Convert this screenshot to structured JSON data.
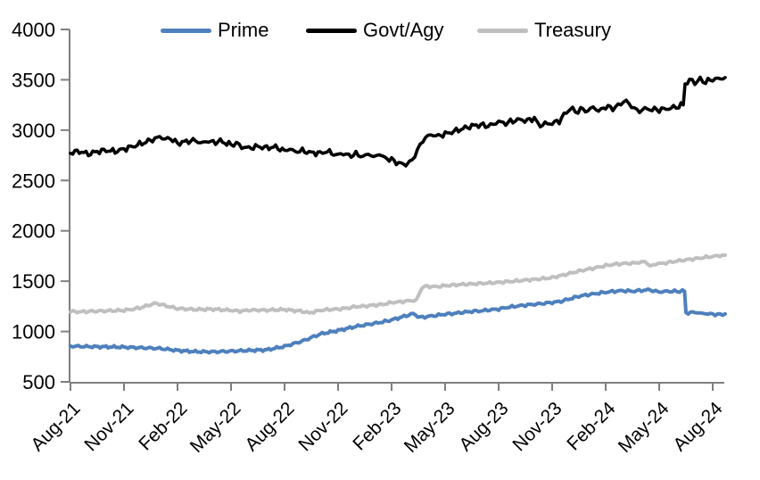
{
  "chart_data": {
    "type": "line",
    "title": "",
    "xlabel": "",
    "ylabel": "",
    "background_color": "#ffffff",
    "axis_color": "#7f7f7f",
    "text_color": "#000000",
    "grid": false,
    "y_axis": {
      "min": 500,
      "max": 4000,
      "tick_interval": 500,
      "ticks": [
        500,
        1000,
        1500,
        2000,
        2500,
        3000,
        3500,
        4000
      ]
    },
    "x_axis": {
      "unit": "months since Aug-21",
      "tick_interval_months": 3,
      "tick_labels": [
        "Aug-21",
        "Nov-21",
        "Feb-22",
        "May-22",
        "Aug-22",
        "Nov-22",
        "Feb-23",
        "May-23",
        "Aug-23",
        "Nov-23",
        "Feb-24",
        "May-24",
        "Aug-24"
      ],
      "label_rotation_deg": -45
    },
    "legend": {
      "position": "top",
      "entries": [
        {
          "name": "Prime",
          "color": "#4E80BD"
        },
        {
          "name": "Govt/Agy",
          "color": "#000000"
        },
        {
          "name": "Treasury",
          "color": "#BFBFBF"
        }
      ]
    },
    "series": [
      {
        "name": "Prime",
        "color": "#4E80BD",
        "points": [
          [
            0,
            855
          ],
          [
            1,
            850
          ],
          [
            2,
            848
          ],
          [
            3,
            845
          ],
          [
            4,
            838
          ],
          [
            5,
            832
          ],
          [
            6,
            812
          ],
          [
            7,
            800
          ],
          [
            8,
            798
          ],
          [
            9,
            805
          ],
          [
            10,
            812
          ],
          [
            11,
            818
          ],
          [
            12,
            852
          ],
          [
            13,
            905
          ],
          [
            14,
            975
          ],
          [
            15,
            1010
          ],
          [
            16,
            1050
          ],
          [
            17,
            1080
          ],
          [
            17.5,
            1095
          ],
          [
            18,
            1115
          ],
          [
            18.7,
            1150
          ],
          [
            19.2,
            1178
          ],
          [
            19.6,
            1140
          ],
          [
            20,
            1148
          ],
          [
            20.5,
            1160
          ],
          [
            21,
            1172
          ],
          [
            21.5,
            1180
          ],
          [
            22,
            1190
          ],
          [
            22.5,
            1200
          ],
          [
            23,
            1205
          ],
          [
            23.5,
            1215
          ],
          [
            24,
            1222
          ],
          [
            24.5,
            1240
          ],
          [
            25,
            1252
          ],
          [
            25.5,
            1262
          ],
          [
            26,
            1270
          ],
          [
            27,
            1288
          ],
          [
            27.5,
            1300
          ],
          [
            28,
            1325
          ],
          [
            28.5,
            1350
          ],
          [
            29,
            1365
          ],
          [
            29.5,
            1378
          ],
          [
            30,
            1390
          ],
          [
            30.5,
            1400
          ],
          [
            31,
            1405
          ],
          [
            31.5,
            1400
          ],
          [
            32,
            1408
          ],
          [
            32.5,
            1415
          ],
          [
            32.8,
            1398
          ],
          [
            33,
            1390
          ],
          [
            33.3,
            1400
          ],
          [
            33.6,
            1398
          ],
          [
            34,
            1400
          ],
          [
            34.3,
            1402
          ],
          [
            34.42,
            1400
          ],
          [
            34.5,
            1185
          ],
          [
            35,
            1190
          ],
          [
            35.3,
            1182
          ],
          [
            35.6,
            1178
          ],
          [
            36,
            1172
          ],
          [
            36.4,
            1168
          ],
          [
            36.7,
            1175
          ]
        ]
      },
      {
        "name": "Govt/Agy",
        "color": "#000000",
        "points": [
          [
            0,
            2775
          ],
          [
            0.5,
            2790
          ],
          [
            1,
            2762
          ],
          [
            1.5,
            2788
          ],
          [
            2,
            2800
          ],
          [
            2.5,
            2788
          ],
          [
            3,
            2812
          ],
          [
            3.5,
            2838
          ],
          [
            4,
            2868
          ],
          [
            4.6,
            2905
          ],
          [
            5,
            2932
          ],
          [
            5.3,
            2912
          ],
          [
            5.6,
            2918
          ],
          [
            6,
            2868
          ],
          [
            6.5,
            2888
          ],
          [
            7,
            2898
          ],
          [
            7.3,
            2868
          ],
          [
            7.6,
            2892
          ],
          [
            8,
            2878
          ],
          [
            8.4,
            2890
          ],
          [
            9,
            2855
          ],
          [
            9.3,
            2868
          ],
          [
            9.6,
            2835
          ],
          [
            10,
            2822
          ],
          [
            10.5,
            2838
          ],
          [
            11,
            2825
          ],
          [
            11.5,
            2832
          ],
          [
            12,
            2795
          ],
          [
            12.3,
            2812
          ],
          [
            12.6,
            2788
          ],
          [
            13,
            2795
          ],
          [
            13.5,
            2775
          ],
          [
            14,
            2772
          ],
          [
            14.4,
            2788
          ],
          [
            15,
            2748
          ],
          [
            15.3,
            2772
          ],
          [
            15.6,
            2745
          ],
          [
            16,
            2762
          ],
          [
            16.4,
            2738
          ],
          [
            16.7,
            2765
          ],
          [
            17,
            2732
          ],
          [
            17.3,
            2762
          ],
          [
            17.6,
            2728
          ],
          [
            18,
            2705
          ],
          [
            18.4,
            2672
          ],
          [
            18.8,
            2655
          ],
          [
            19,
            2678
          ],
          [
            19.3,
            2742
          ],
          [
            19.6,
            2858
          ],
          [
            19.9,
            2925
          ],
          [
            20.2,
            2958
          ],
          [
            20.5,
            2938
          ],
          [
            21,
            2962
          ],
          [
            21.5,
            2988
          ],
          [
            22,
            3015
          ],
          [
            22.5,
            3042
          ],
          [
            23,
            3052
          ],
          [
            23.4,
            3040
          ],
          [
            23.7,
            3060
          ],
          [
            24,
            3082
          ],
          [
            24.4,
            3068
          ],
          [
            24.8,
            3092
          ],
          [
            25.2,
            3105
          ],
          [
            25.6,
            3092
          ],
          [
            26,
            3122
          ],
          [
            26.2,
            3048
          ],
          [
            26.6,
            3062
          ],
          [
            27,
            3068
          ],
          [
            27.4,
            3092
          ],
          [
            27.8,
            3178
          ],
          [
            28,
            3218
          ],
          [
            28.3,
            3182
          ],
          [
            28.6,
            3205
          ],
          [
            29,
            3192
          ],
          [
            29.3,
            3232
          ],
          [
            29.6,
            3185
          ],
          [
            30,
            3235
          ],
          [
            30.4,
            3215
          ],
          [
            30.7,
            3242
          ],
          [
            31,
            3288
          ],
          [
            31.3,
            3268
          ],
          [
            31.6,
            3212
          ],
          [
            31.9,
            3188
          ],
          [
            32.2,
            3212
          ],
          [
            32.6,
            3205
          ],
          [
            33,
            3202
          ],
          [
            33.4,
            3212
          ],
          [
            33.8,
            3222
          ],
          [
            34.1,
            3238
          ],
          [
            34.35,
            3252
          ],
          [
            34.45,
            3462
          ],
          [
            34.7,
            3492
          ],
          [
            35,
            3478
          ],
          [
            35.3,
            3498
          ],
          [
            35.6,
            3482
          ],
          [
            36,
            3502
          ],
          [
            36.3,
            3508
          ],
          [
            36.7,
            3522
          ]
        ]
      },
      {
        "name": "Treasury",
        "color": "#BFBFBF",
        "points": [
          [
            0,
            1200
          ],
          [
            0.5,
            1195
          ],
          [
            1,
            1200
          ],
          [
            2,
            1205
          ],
          [
            3,
            1210
          ],
          [
            3.5,
            1222
          ],
          [
            4,
            1240
          ],
          [
            4.7,
            1278
          ],
          [
            5,
            1272
          ],
          [
            5.5,
            1248
          ],
          [
            6,
            1228
          ],
          [
            7,
            1218
          ],
          [
            8,
            1222
          ],
          [
            9,
            1210
          ],
          [
            9.5,
            1202
          ],
          [
            10,
            1212
          ],
          [
            11,
            1212
          ],
          [
            12,
            1218
          ],
          [
            13,
            1200
          ],
          [
            13.4,
            1185
          ],
          [
            14,
            1210
          ],
          [
            14.5,
            1218
          ],
          [
            15,
            1222
          ],
          [
            15.5,
            1232
          ],
          [
            16,
            1248
          ],
          [
            16.5,
            1252
          ],
          [
            17,
            1262
          ],
          [
            17.5,
            1268
          ],
          [
            18,
            1288
          ],
          [
            18.5,
            1295
          ],
          [
            19,
            1305
          ],
          [
            19.4,
            1310
          ],
          [
            19.7,
            1440
          ],
          [
            20,
            1448
          ],
          [
            20.5,
            1445
          ],
          [
            21,
            1455
          ],
          [
            21.5,
            1462
          ],
          [
            22,
            1468
          ],
          [
            22.5,
            1472
          ],
          [
            23,
            1478
          ],
          [
            23.5,
            1482
          ],
          [
            24,
            1488
          ],
          [
            24.5,
            1495
          ],
          [
            25,
            1502
          ],
          [
            25.5,
            1510
          ],
          [
            26,
            1518
          ],
          [
            26.5,
            1525
          ],
          [
            27,
            1535
          ],
          [
            27.5,
            1555
          ],
          [
            28,
            1578
          ],
          [
            28.5,
            1600
          ],
          [
            29,
            1618
          ],
          [
            29.5,
            1635
          ],
          [
            30,
            1655
          ],
          [
            30.5,
            1668
          ],
          [
            31,
            1675
          ],
          [
            31.5,
            1678
          ],
          [
            32,
            1690
          ],
          [
            32.2,
            1692
          ],
          [
            32.5,
            1652
          ],
          [
            32.8,
            1665
          ],
          [
            33,
            1672
          ],
          [
            33.5,
            1685
          ],
          [
            34,
            1700
          ],
          [
            34.5,
            1712
          ],
          [
            35,
            1722
          ],
          [
            35.5,
            1735
          ],
          [
            36,
            1745
          ],
          [
            36.4,
            1755
          ],
          [
            36.7,
            1758
          ]
        ]
      }
    ]
  }
}
